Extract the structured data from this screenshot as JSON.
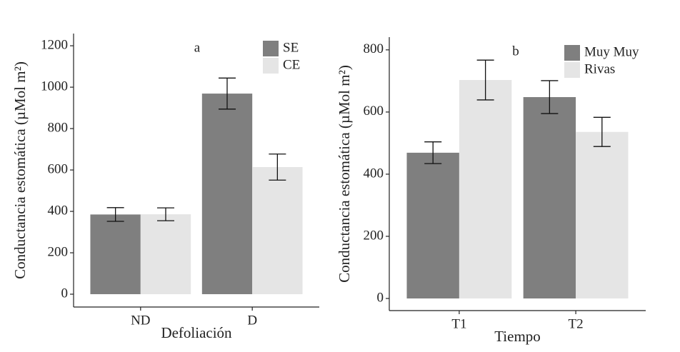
{
  "chart_data": [
    {
      "type": "bar",
      "annotation": "a",
      "xlabel": "Defoliación",
      "ylabel": "Conductancia estomática (µMol m²)",
      "categories": [
        "ND",
        "D"
      ],
      "series": [
        {
          "name": "SE",
          "color": "#7f7f7f",
          "values": [
            385,
            969
          ],
          "errors": [
            33,
            75
          ]
        },
        {
          "name": "CE",
          "color": "#e5e5e5",
          "values": [
            386,
            614
          ],
          "errors": [
            31,
            63
          ]
        }
      ],
      "ylim": [
        -62,
        1259
      ],
      "yticks": [
        0,
        200,
        400,
        600,
        800,
        1000,
        1200
      ],
      "grid": false,
      "legend": "top right"
    },
    {
      "type": "bar",
      "annotation": "b",
      "xlabel": "Tiempo",
      "ylabel": "Conductancia estomática (µMol m²)",
      "categories": [
        "T1",
        "T2"
      ],
      "series": [
        {
          "name": "Muy Muy",
          "color": "#7f7f7f",
          "values": [
            469,
            648
          ],
          "errors": [
            35,
            53
          ]
        },
        {
          "name": "Rivas",
          "color": "#e5e5e5",
          "values": [
            703,
            536
          ],
          "errors": [
            64,
            47
          ]
        }
      ],
      "ylim": [
        -39,
        841
      ],
      "yticks": [
        0,
        200,
        400,
        600,
        800
      ],
      "grid": false,
      "legend": "top right"
    }
  ]
}
